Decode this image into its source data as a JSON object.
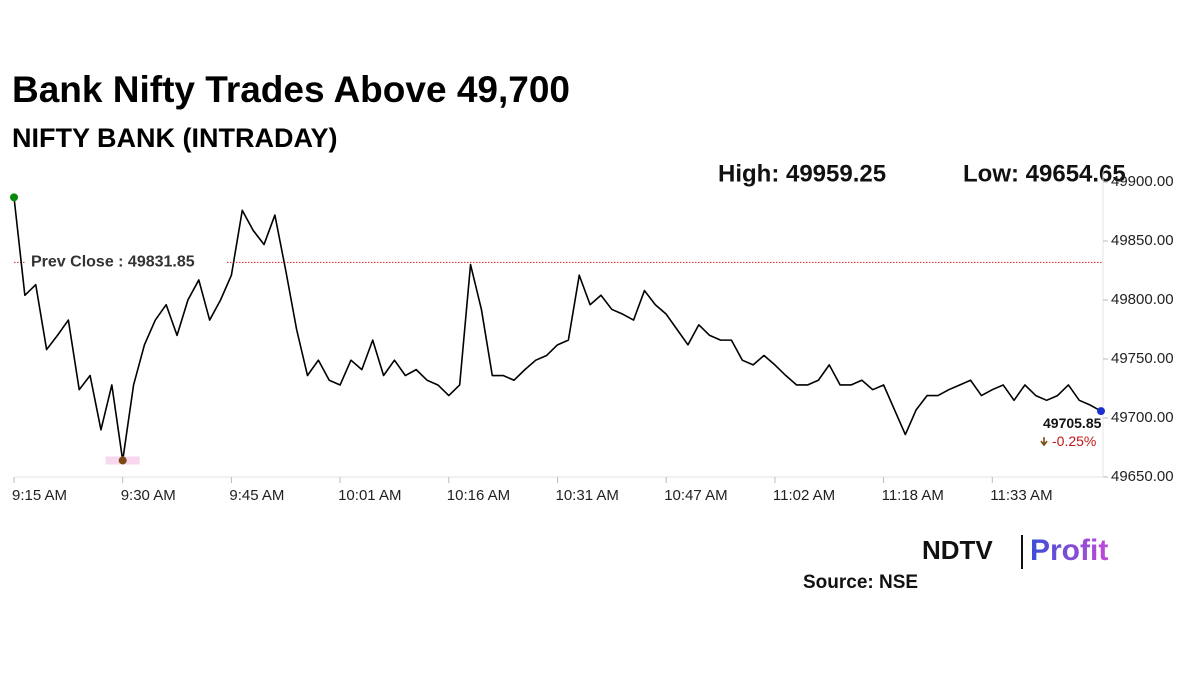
{
  "chart_data": {
    "type": "line",
    "title": "Bank Nifty Trades Above 49,700",
    "subtitle": "NIFTY BANK (INTRADAY)",
    "stats": [
      "High: 49959.25",
      "Low: 49654.65"
    ],
    "categories": [
      "9:15 AM",
      null,
      null,
      null,
      null,
      null,
      null,
      null,
      null,
      null,
      "9:30 AM",
      null,
      null,
      null,
      null,
      null,
      null,
      null,
      null,
      null,
      "9:45 AM",
      null,
      null,
      null,
      null,
      null,
      null,
      null,
      null,
      null,
      "10:01 AM",
      null,
      null,
      null,
      null,
      null,
      null,
      null,
      null,
      null,
      "10:16 AM",
      null,
      null,
      null,
      null,
      null,
      null,
      null,
      null,
      null,
      "10:31 AM",
      null,
      null,
      null,
      null,
      null,
      null,
      null,
      null,
      null,
      "10:47 AM",
      null,
      null,
      null,
      null,
      null,
      null,
      null,
      null,
      null,
      "11:02 AM",
      null,
      null,
      null,
      null,
      null,
      null,
      null,
      null,
      null,
      "11:18 AM",
      null,
      null,
      null,
      null,
      null,
      null,
      null,
      null,
      null,
      "11:33 AM",
      null,
      null,
      null,
      null,
      null,
      null,
      null,
      null,
      null,
      null
    ],
    "values": [
      49887,
      49804,
      49813,
      49758,
      49770,
      49783,
      49724,
      49736,
      49690,
      49728,
      49664,
      49728,
      49762,
      49783,
      49796,
      49770,
      49800,
      49817,
      49783,
      49800,
      49821,
      49876,
      49859,
      49847,
      49872,
      49825,
      49775,
      49736,
      49749,
      49732,
      49728,
      49749,
      49741,
      49766,
      49736,
      49749,
      49736,
      49741,
      49732,
      49728,
      49719,
      49728,
      49830,
      49792,
      49736,
      49736,
      49732,
      49741,
      49749,
      49753,
      49762,
      49766,
      49821,
      49796,
      49804,
      49792,
      49788,
      49783,
      49808,
      49796,
      49788,
      49775,
      49762,
      49779,
      49770,
      49766,
      49766,
      49749,
      49745,
      49753,
      49745,
      49736,
      49728,
      49728,
      49732,
      49745,
      49728,
      49728,
      49732,
      49724,
      49728,
      49707,
      49686,
      49707,
      49719,
      49719,
      49724,
      49728,
      49732,
      49719,
      49724,
      49728,
      49715,
      49728,
      49719,
      49715,
      49719,
      49728,
      49715,
      49711,
      49705.85
    ],
    "color": "#000000",
    "start_color": "#0a8a0a",
    "low_color": "#7a4a10",
    "end_color": "#1a2fd0",
    "reference_line": {
      "label": "Prev Close : 49831.85",
      "value": 49831.85,
      "color": "#d62020"
    },
    "last_value": 49705.85,
    "change": {
      "value": -0.25,
      "label": "-0.25%",
      "color": "#c01818"
    },
    "ylim": [
      49650,
      49900
    ],
    "yticks": [
      {
        "value": 49650,
        "label": "49650.00"
      },
      {
        "value": 49700,
        "label": "49700.00"
      },
      {
        "value": 49750,
        "label": "49750.00"
      },
      {
        "value": 49800,
        "label": "49800.00"
      },
      {
        "value": 49850,
        "label": "49850.00"
      },
      {
        "value": 49900,
        "label": "49900.00"
      }
    ],
    "logo": [
      "NDTV",
      "Profit"
    ],
    "source": "Source: NSE"
  }
}
